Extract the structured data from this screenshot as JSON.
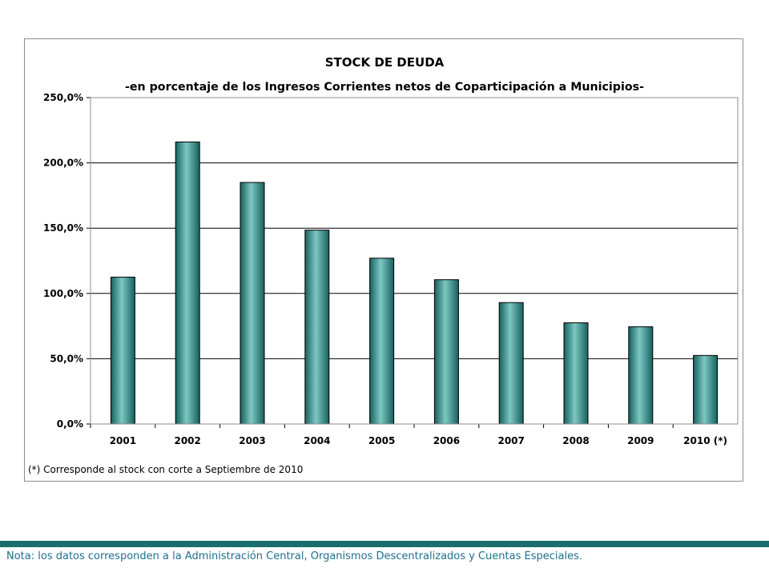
{
  "chart_data": {
    "type": "bar",
    "title": "STOCK DE DEUDA",
    "subtitle": "-en porcentaje de los Ingresos Corrientes netos de Coparticipación a Municipios-",
    "categories": [
      "2001",
      "2002",
      "2003",
      "2004",
      "2005",
      "2006",
      "2007",
      "2008",
      "2009",
      "2010 (*)"
    ],
    "values": [
      112.5,
      216.0,
      185.0,
      148.5,
      127.0,
      110.5,
      93.0,
      77.5,
      74.5,
      52.5
    ],
    "ylim": [
      0,
      250
    ],
    "yticks": [
      0,
      50,
      100,
      150,
      200,
      250
    ],
    "ytick_labels": [
      "0,0%",
      "50,0%",
      "100,0%",
      "150,0%",
      "200,0%",
      "250,0%"
    ],
    "grid": true,
    "bar_color": "#2e8c88",
    "footnote": "(*) Corresponde al stock con corte a Septiembre de 2010"
  },
  "note": "Nota: los datos corresponden a la Administración Central, Organismos Descentralizados y Cuentas Especiales.",
  "colors": {
    "accent_bar": "#1a6f6c",
    "note_text": "#1f6e8c"
  }
}
